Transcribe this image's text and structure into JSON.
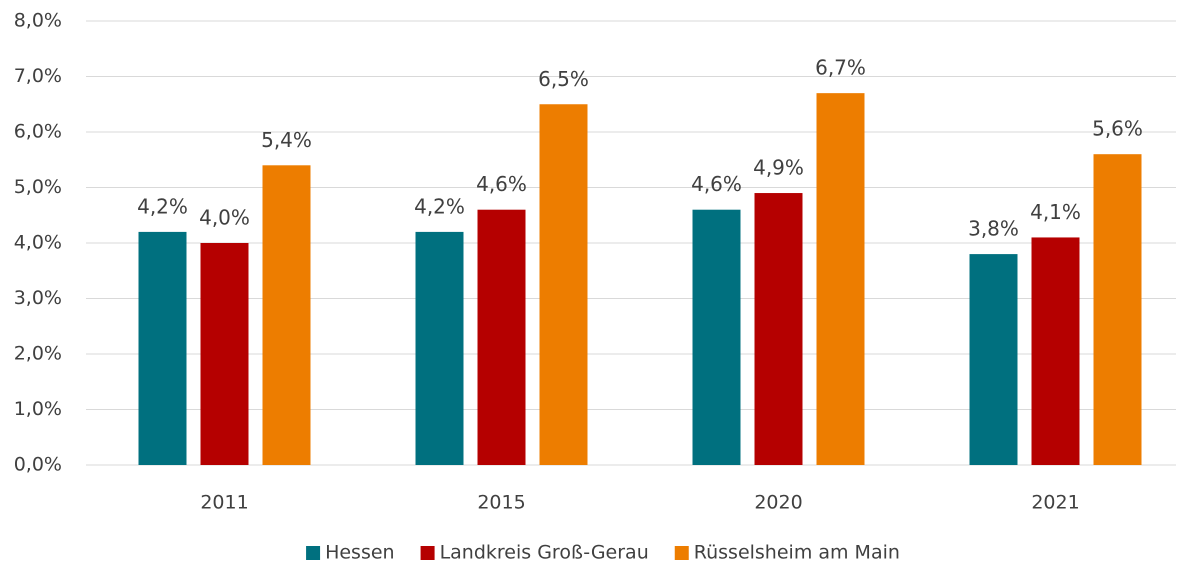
{
  "chart_data": {
    "type": "bar",
    "categories": [
      "2011",
      "2015",
      "2020",
      "2021"
    ],
    "series": [
      {
        "name": "Hessen",
        "color": "#00707f",
        "values": [
          4.2,
          4.2,
          4.6,
          3.8
        ],
        "value_labels": [
          "4,2%",
          "4,2%",
          "4,6%",
          "3,8%"
        ]
      },
      {
        "name": "Landkreis Groß-Gerau",
        "color": "#b50000",
        "values": [
          4.0,
          4.6,
          4.9,
          4.1
        ],
        "value_labels": [
          "4,0%",
          "4,6%",
          "4,9%",
          "4,1%"
        ]
      },
      {
        "name": "Rüsselsheim am Main",
        "color": "#ed7d00",
        "values": [
          5.4,
          6.5,
          6.7,
          5.6
        ],
        "value_labels": [
          "5,4%",
          "6,5%",
          "6,7%",
          "5,6%"
        ]
      }
    ],
    "ylim": [
      0,
      8
    ],
    "yticks": [
      {
        "value": 0,
        "label": "0,0%"
      },
      {
        "value": 1,
        "label": "1,0%"
      },
      {
        "value": 2,
        "label": "2,0%"
      },
      {
        "value": 3,
        "label": "3,0%"
      },
      {
        "value": 4,
        "label": "4,0%"
      },
      {
        "value": 5,
        "label": "5,0%"
      },
      {
        "value": 6,
        "label": "6,0%"
      },
      {
        "value": 7,
        "label": "7,0%"
      },
      {
        "value": 8,
        "label": "8,0%"
      }
    ],
    "grid": true,
    "legend": "bottom"
  }
}
